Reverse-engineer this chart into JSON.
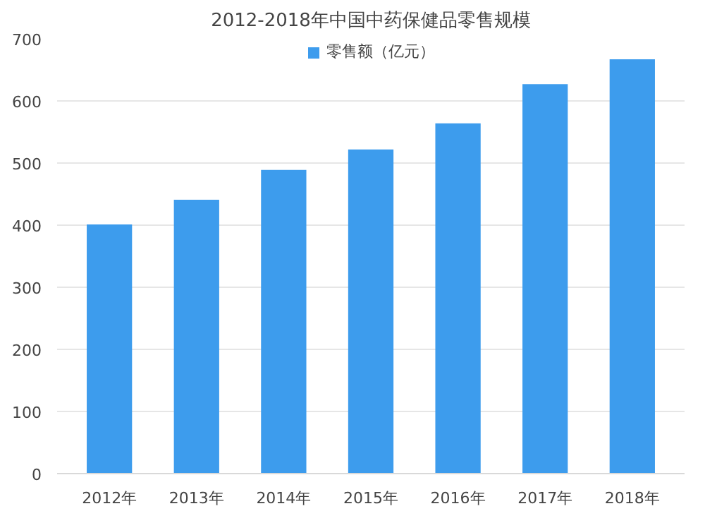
{
  "chart_data": {
    "type": "bar",
    "title": "2012-2018年中国中药保健品零售规模",
    "categories": [
      "2012年",
      "2013年",
      "2014年",
      "2015年",
      "2016年",
      "2017年",
      "2018年"
    ],
    "series": [
      {
        "name": "零售额（亿元）",
        "color": "#3d9ced",
        "values": [
          401,
          441,
          489,
          522,
          564,
          627,
          667
        ]
      }
    ],
    "ylim": [
      0,
      700
    ],
    "yticks": [
      0,
      100,
      200,
      300,
      400,
      500,
      600,
      700
    ],
    "grid": "y",
    "legend": "top"
  }
}
